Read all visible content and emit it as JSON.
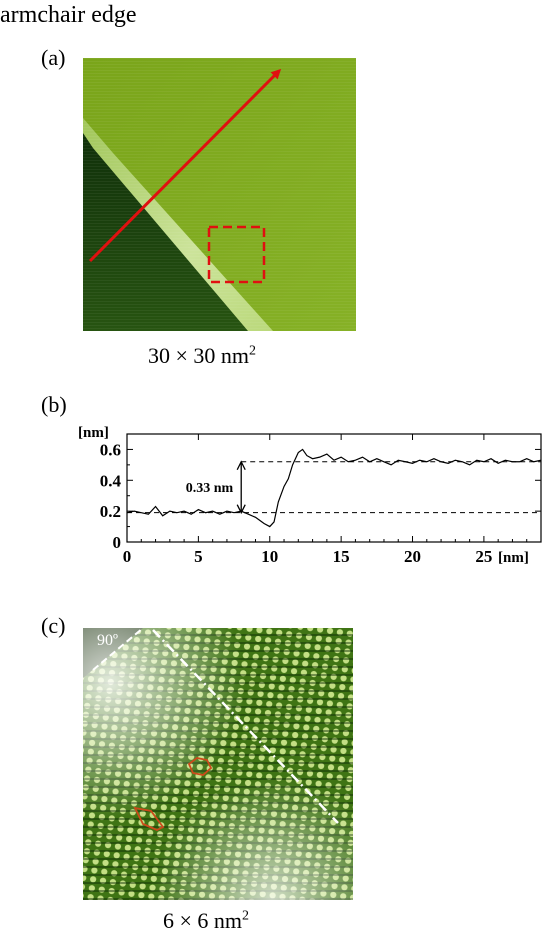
{
  "figure": {
    "title": "armchair edge",
    "panel_a": {
      "label": "(a)",
      "caption_base": "30 × 30 nm",
      "caption_sup": "2"
    },
    "panel_b": {
      "label": "(b)"
    },
    "panel_c": {
      "label": "(c)",
      "angle_label": "90º",
      "caption_base": "6 × 6 nm",
      "caption_sup": "2"
    }
  },
  "colors": {
    "terrace_top": "#7ca619",
    "terrace_low": "#1b3f06",
    "edge_bright": "#d6e9a4",
    "arrow": "#e01010",
    "hexagon_outline": "#cc4a1a"
  },
  "chart_data": {
    "type": "line",
    "title": "",
    "xlabel": "[nm]",
    "ylabel": "[nm]",
    "xlim": [
      0,
      29
    ],
    "ylim": [
      0,
      0.7
    ],
    "xticks": [
      0,
      5,
      10,
      15,
      20,
      25
    ],
    "yticks": [
      0,
      0.2,
      0.4,
      0.6
    ],
    "xtick_labels": [
      "0",
      "5",
      "10",
      "15",
      "20",
      "25"
    ],
    "ytick_labels": [
      "0",
      "0.2",
      "0.4",
      "0.6"
    ],
    "grid": false,
    "annotation": "0.33 nm",
    "reference_lines": [
      {
        "y": 0.19,
        "x_range": [
          0,
          29
        ]
      },
      {
        "y": 0.52,
        "x_range": [
          8,
          29
        ]
      }
    ],
    "step_arrow": {
      "x": 8,
      "y_from": 0.19,
      "y_to": 0.52
    },
    "series": [
      {
        "x": [
          0,
          0.5,
          1,
          1.5,
          2,
          2.5,
          3,
          3.5,
          4,
          4.5,
          5,
          5.5,
          6,
          6.5,
          7,
          7.5,
          8,
          8.5,
          9,
          9.3,
          9.6,
          10,
          10.3,
          10.6,
          11,
          11.3,
          11.6,
          12,
          12.3,
          12.6,
          13,
          13.5,
          14,
          14.5,
          15,
          15.5,
          16,
          16.5,
          17,
          17.5,
          18,
          18.5,
          19,
          19.5,
          20,
          20.5,
          21,
          21.5,
          22,
          22.5,
          23,
          23.5,
          24,
          24.5,
          25,
          25.5,
          26,
          26.5,
          27,
          27.5,
          28,
          28.5,
          29
        ],
        "y": [
          0.19,
          0.2,
          0.19,
          0.18,
          0.23,
          0.17,
          0.2,
          0.19,
          0.2,
          0.18,
          0.21,
          0.19,
          0.2,
          0.18,
          0.2,
          0.19,
          0.2,
          0.18,
          0.16,
          0.14,
          0.12,
          0.1,
          0.13,
          0.26,
          0.36,
          0.41,
          0.5,
          0.58,
          0.6,
          0.56,
          0.54,
          0.55,
          0.57,
          0.53,
          0.55,
          0.52,
          0.53,
          0.55,
          0.52,
          0.54,
          0.52,
          0.5,
          0.53,
          0.52,
          0.51,
          0.53,
          0.52,
          0.54,
          0.52,
          0.51,
          0.53,
          0.52,
          0.5,
          0.53,
          0.52,
          0.54,
          0.51,
          0.53,
          0.52,
          0.52,
          0.54,
          0.52,
          0.53
        ]
      }
    ]
  }
}
